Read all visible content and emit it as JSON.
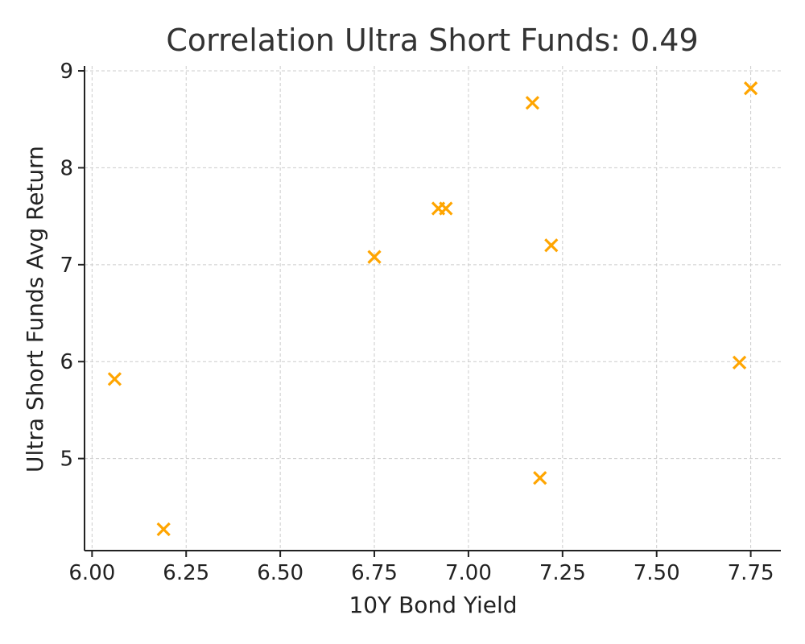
{
  "chart_data": {
    "type": "scatter",
    "title": "Correlation Ultra Short Funds: 0.49",
    "xlabel": "10Y Bond Yield",
    "ylabel": "Ultra Short Funds Avg Return",
    "xlim": [
      5.98,
      7.83
    ],
    "ylim": [
      4.05,
      9.05
    ],
    "xticks": [
      6.0,
      6.25,
      6.5,
      6.75,
      7.0,
      7.25,
      7.5,
      7.75
    ],
    "xtick_labels": [
      "6.00",
      "6.25",
      "6.50",
      "6.75",
      "7.00",
      "7.25",
      "7.50",
      "7.75"
    ],
    "yticks": [
      5,
      6,
      7,
      8,
      9
    ],
    "ytick_labels": [
      "5",
      "6",
      "7",
      "8",
      "9"
    ],
    "grid": true,
    "marker": "x",
    "color": "#FFA500",
    "series": [
      {
        "points": [
          {
            "x": 6.06,
            "y": 5.82
          },
          {
            "x": 6.19,
            "y": 4.27
          },
          {
            "x": 6.75,
            "y": 7.08
          },
          {
            "x": 6.92,
            "y": 7.58
          },
          {
            "x": 6.94,
            "y": 7.58
          },
          {
            "x": 7.17,
            "y": 8.67
          },
          {
            "x": 7.19,
            "y": 4.8
          },
          {
            "x": 7.22,
            "y": 7.2
          },
          {
            "x": 7.72,
            "y": 5.99
          },
          {
            "x": 7.75,
            "y": 8.82
          }
        ]
      }
    ]
  }
}
